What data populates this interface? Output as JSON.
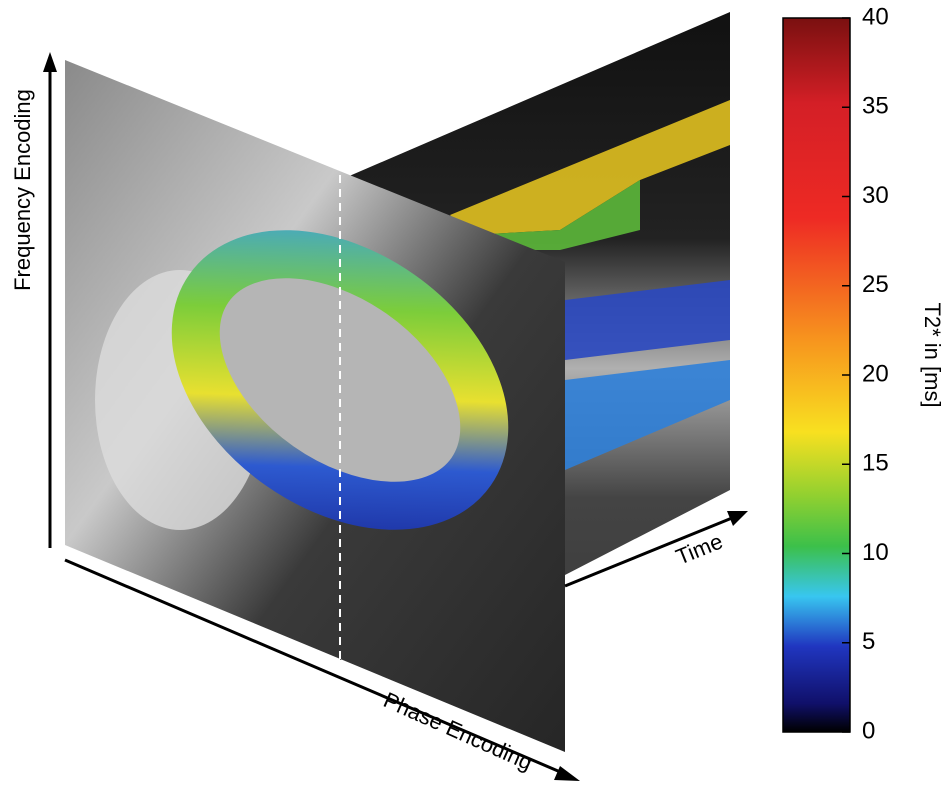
{
  "axes": {
    "frequency": "Frequency Encoding",
    "phase": "Phase Encoding",
    "time": "Time"
  },
  "colorbar": {
    "label": "T2* in [ms]",
    "lim": [
      0,
      40
    ],
    "ticks": [
      0,
      5,
      10,
      15,
      20,
      25,
      30,
      35,
      40
    ]
  }
}
